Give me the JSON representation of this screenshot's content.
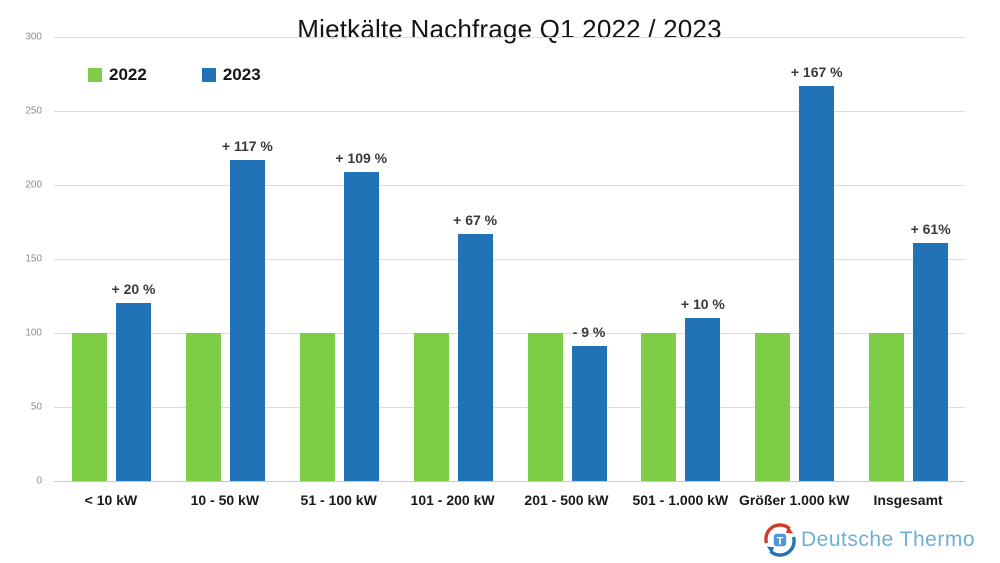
{
  "chart_data": {
    "type": "bar",
    "title": "Mietkälte Nachfrage Q1 2022 / 2023",
    "categories": [
      "< 10 kW",
      "10 - 50 kW",
      "51 - 100 kW",
      "101 - 200 kW",
      "201 - 500 kW",
      "501 - 1.000 kW",
      "Größer 1.000 kW",
      "Insgesamt"
    ],
    "series": [
      {
        "name": "2022",
        "color": "#7dce46",
        "values": [
          100,
          100,
          100,
          100,
          100,
          100,
          100,
          100
        ]
      },
      {
        "name": "2023",
        "color": "#2272b8",
        "values": [
          120,
          217,
          209,
          167,
          91,
          110,
          267,
          161
        ]
      }
    ],
    "bar_labels": [
      "+ 20 %",
      "+ 117 %",
      "+ 109 %",
      "+ 67 %",
      "- 9 %",
      "+ 10 %",
      "+ 167 %",
      "+ 61%"
    ],
    "xlabel": "",
    "ylabel": "",
    "ylim": [
      0,
      300
    ],
    "y_ticks": [
      0,
      50,
      100,
      150,
      200,
      250,
      300
    ],
    "grid": true,
    "legend_position": "top-left"
  },
  "branding": {
    "logo_text": "Deutsche Thermo",
    "logo_letter": "T",
    "logo_text_color": "#6fafd6",
    "logo_red": "#d13b2b",
    "logo_blue": "#2272b8",
    "logo_square_fill": "#4f97ce"
  }
}
